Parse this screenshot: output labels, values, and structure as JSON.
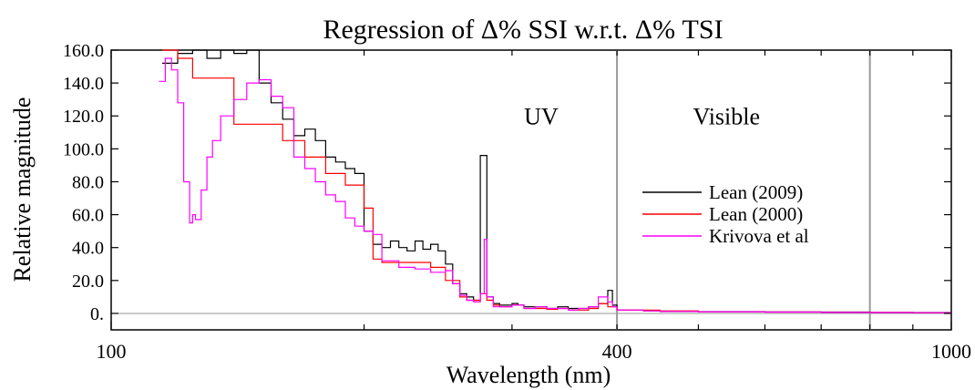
{
  "chart_data": {
    "type": "line",
    "title": "Regression of Δ% SSI w.r.t. Δ% TSI",
    "xlabel": "Wavelength (nm)",
    "ylabel": "Relative magnitude",
    "x_scale": "log",
    "xlim": [
      100,
      1000
    ],
    "ylim": [
      -10,
      160
    ],
    "x_ticks": [
      {
        "value": 100,
        "label": "100"
      },
      {
        "value": 400,
        "label": "400"
      },
      {
        "value": 1000,
        "label": "1000"
      }
    ],
    "y_ticks": [
      {
        "value": 160,
        "label": "160.0"
      },
      {
        "value": 140,
        "label": "140.0"
      },
      {
        "value": 120,
        "label": "120.0"
      },
      {
        "value": 100,
        "label": "100.0"
      },
      {
        "value": 80,
        "label": "80.0"
      },
      {
        "value": 60,
        "label": "60.0"
      },
      {
        "value": 40,
        "label": "40.0"
      },
      {
        "value": 20,
        "label": "20.0"
      },
      {
        "value": 0,
        "label": "0."
      }
    ],
    "vlines": [
      400,
      800
    ],
    "region_labels": [
      {
        "text": "UV",
        "x": 325,
        "y": 115
      },
      {
        "text": "Visible",
        "x": 540,
        "y": 115
      }
    ],
    "legend_position": "center-right",
    "series": [
      {
        "name": "Lean (2009)",
        "color": "#000000",
        "x": [
          115,
          120,
          125,
          130,
          135,
          140,
          145,
          150,
          155,
          160,
          165,
          170,
          175,
          180,
          185,
          190,
          195,
          200,
          205,
          210,
          215,
          220,
          225,
          230,
          235,
          240,
          245,
          250,
          255,
          260,
          265,
          270,
          275,
          280,
          285,
          290,
          295,
          300,
          305,
          310,
          320,
          330,
          340,
          350,
          360,
          370,
          380,
          390,
          395,
          400,
          410,
          420,
          430,
          440,
          450,
          500,
          600,
          700,
          800,
          900,
          1000
        ],
        "y": [
          152,
          158,
          160,
          155,
          160,
          158,
          160,
          140,
          128,
          118,
          108,
          112,
          105,
          95,
          92,
          88,
          85,
          50,
          42,
          40,
          44,
          40,
          38,
          44,
          39,
          42,
          38,
          30,
          18,
          12,
          10,
          8,
          96,
          10,
          6,
          5,
          5,
          6,
          5,
          4,
          4,
          3,
          4,
          3,
          3,
          4,
          6,
          14,
          5,
          2,
          2,
          2,
          1.5,
          1.5,
          1.2,
          1.1,
          0.9,
          0.8,
          0.6,
          0.5,
          0.5
        ]
      },
      {
        "name": "Lean (2000)",
        "color": "#ff0000",
        "x": [
          115,
          120,
          125,
          130,
          140,
          150,
          160,
          170,
          180,
          190,
          200,
          205,
          210,
          220,
          230,
          240,
          250,
          260,
          265,
          270,
          275,
          280,
          285,
          290,
          300,
          310,
          320,
          330,
          340,
          350,
          360,
          370,
          380,
          390,
          400,
          450,
          500,
          600,
          700,
          800,
          900,
          1000
        ],
        "y": [
          160,
          155,
          143,
          143,
          115,
          115,
          105,
          95,
          85,
          78,
          64,
          33,
          31,
          31,
          31,
          28,
          20,
          10,
          8,
          8,
          12,
          8,
          5,
          4,
          5,
          3,
          3,
          2.5,
          3,
          2,
          2,
          3,
          6,
          4,
          2,
          1.5,
          1,
          0.8,
          0.6,
          0.5,
          0.4,
          0.4
        ]
      },
      {
        "name": "Krivova et al",
        "color": "#ff00ff",
        "x": [
          114,
          116,
          118,
          120,
          122,
          124,
          125,
          126,
          128,
          130,
          132,
          135,
          140,
          145,
          150,
          155,
          160,
          165,
          170,
          175,
          180,
          185,
          190,
          195,
          200,
          205,
          210,
          220,
          230,
          240,
          250,
          255,
          260,
          265,
          270,
          275,
          278,
          280,
          285,
          290,
          300,
          310,
          320,
          330,
          340,
          350,
          360,
          370,
          380,
          390,
          395,
          400,
          410,
          420,
          430,
          440,
          450,
          500,
          600,
          700,
          800,
          900,
          1000
        ],
        "y": [
          141,
          155,
          148,
          128,
          80,
          55,
          60,
          57,
          75,
          95,
          105,
          120,
          130,
          140,
          142,
          132,
          125,
          95,
          88,
          80,
          72,
          68,
          58,
          53,
          50,
          48,
          32,
          28,
          27,
          25,
          26,
          18,
          11,
          8,
          7,
          12,
          45,
          10,
          4,
          4,
          5,
          3,
          4,
          3,
          3,
          2,
          3,
          4,
          10,
          7,
          4,
          2,
          2,
          2,
          1.5,
          1.5,
          1.2,
          1,
          0.8,
          0.6,
          0.5,
          0.4,
          0.4
        ]
      }
    ]
  }
}
